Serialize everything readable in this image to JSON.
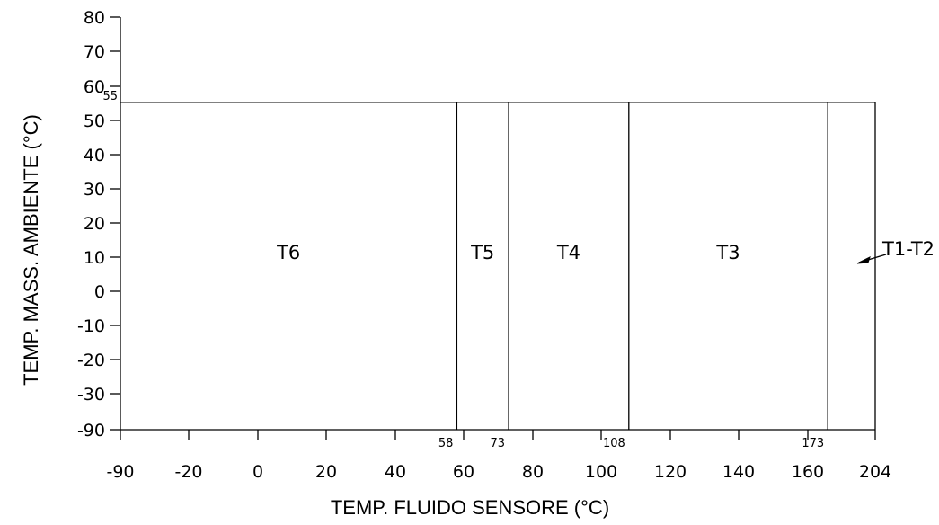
{
  "chart_data": {
    "type": "area",
    "xlabel": "TEMP. FLUIDO SENSORE (°C)",
    "ylabel": "TEMP. MASS. AMBIENTE (°C)",
    "x_ticks": [
      "-90",
      "-20",
      "0",
      "20",
      "40",
      "60",
      "80",
      "100",
      "120",
      "140",
      "160",
      "204"
    ],
    "y_ticks": [
      "80",
      "70",
      "60",
      "50",
      "40",
      "30",
      "20",
      "10",
      "0",
      "-10",
      "-20",
      "-30",
      "-90"
    ],
    "ambient_limit": 55,
    "ambient_limit_label": "55",
    "boundaries": [
      {
        "value": 58,
        "label": "58"
      },
      {
        "value": 73,
        "label": "73"
      },
      {
        "value": 108,
        "label": "108"
      },
      {
        "value": 173,
        "label": "173"
      }
    ],
    "zones": [
      {
        "name": "T6",
        "from": -90,
        "to": 58
      },
      {
        "name": "T5",
        "from": 58,
        "to": 73
      },
      {
        "name": "T4",
        "from": 73,
        "to": 108
      },
      {
        "name": "T3",
        "from": 108,
        "to": 173
      },
      {
        "name": "T1-T2",
        "from": 173,
        "to": 204
      }
    ]
  }
}
